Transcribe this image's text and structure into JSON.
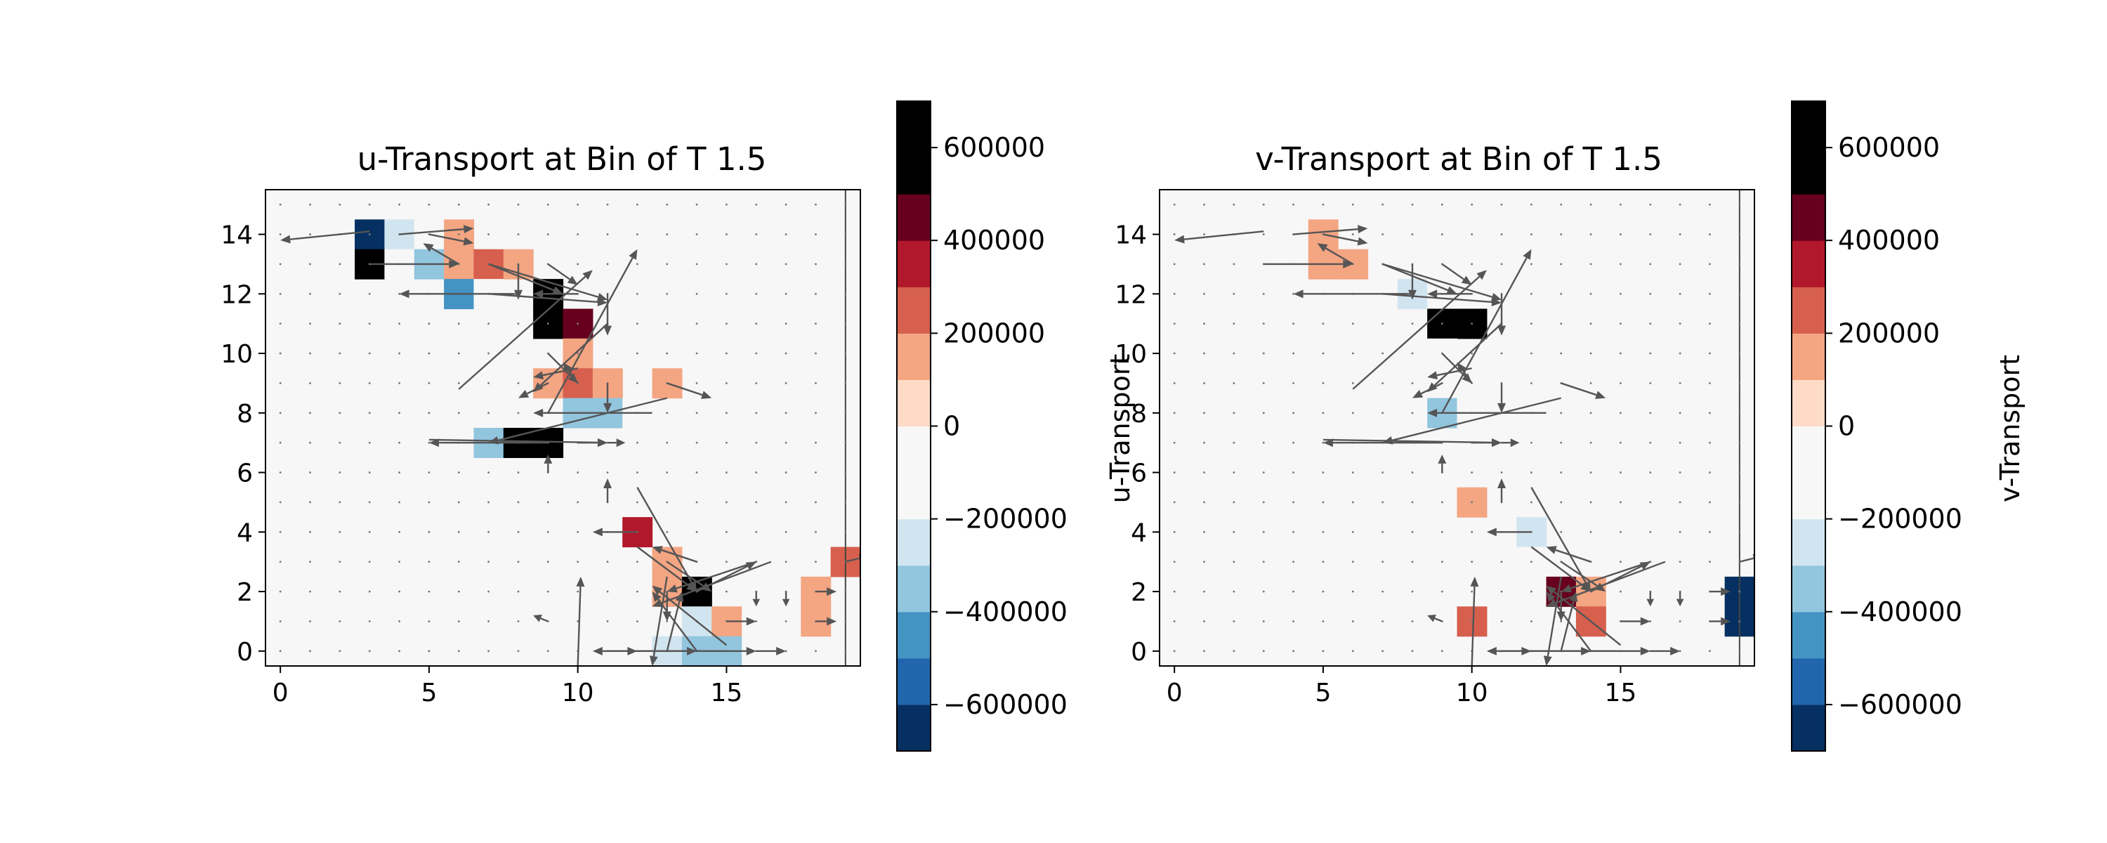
{
  "chart_data": [
    {
      "type": "heatmap",
      "title": "u-Transport at Bin of T 1.5",
      "xlabel": "",
      "ylabel": "",
      "xlim": [
        -0.5,
        19.5
      ],
      "ylim": [
        -0.5,
        15.5
      ],
      "x_ticks": [
        "0",
        "5",
        "10",
        "15"
      ],
      "y_ticks": [
        "0",
        "2",
        "4",
        "6",
        "8",
        "10",
        "12",
        "14"
      ],
      "grid": false,
      "cells": [
        {
          "x": 3,
          "y": 14,
          "value": -650000
        },
        {
          "x": 4,
          "y": 14,
          "value": -250000
        },
        {
          "x": 5,
          "y": 14,
          "value": -100000
        },
        {
          "x": 6,
          "y": 14,
          "value": 100000
        },
        {
          "x": 3,
          "y": 13,
          "value": 650000
        },
        {
          "x": 4,
          "y": 13,
          "value": -150000
        },
        {
          "x": 5,
          "y": 13,
          "value": -350000
        },
        {
          "x": 6,
          "y": 13,
          "value": 150000
        },
        {
          "x": 7,
          "y": 13,
          "value": 250000
        },
        {
          "x": 8,
          "y": 13,
          "value": 100000
        },
        {
          "x": 6,
          "y": 12,
          "value": -450000
        },
        {
          "x": 7,
          "y": 12,
          "value": -150000
        },
        {
          "x": 9,
          "y": 12,
          "value": 650000
        },
        {
          "x": 9,
          "y": 11,
          "value": 650000
        },
        {
          "x": 10,
          "y": 11,
          "value": 450000
        },
        {
          "x": 10,
          "y": 10,
          "value": 100000
        },
        {
          "x": 8,
          "y": 9,
          "value": -150000
        },
        {
          "x": 9,
          "y": 9,
          "value": 100000
        },
        {
          "x": 10,
          "y": 9,
          "value": 250000
        },
        {
          "x": 11,
          "y": 9,
          "value": 100000
        },
        {
          "x": 13,
          "y": 9,
          "value": 150000
        },
        {
          "x": 10,
          "y": 8,
          "value": -350000
        },
        {
          "x": 11,
          "y": 8,
          "value": -350000
        },
        {
          "x": 12,
          "y": 8,
          "value": -100000
        },
        {
          "x": 6,
          "y": 7,
          "value": -100000
        },
        {
          "x": 7,
          "y": 7,
          "value": -350000
        },
        {
          "x": 8,
          "y": 7,
          "value": 650000
        },
        {
          "x": 9,
          "y": 7,
          "value": 550000
        },
        {
          "x": 11,
          "y": 4,
          "value": -100000
        },
        {
          "x": 12,
          "y": 4,
          "value": 350000
        },
        {
          "x": 13,
          "y": 3,
          "value": 150000
        },
        {
          "x": 19,
          "y": 3,
          "value": 250000
        },
        {
          "x": 13,
          "y": 2,
          "value": 150000
        },
        {
          "x": 14,
          "y": 2,
          "value": 550000
        },
        {
          "x": 18,
          "y": 2,
          "value": 150000
        },
        {
          "x": 9,
          "y": 1,
          "value": -150000
        },
        {
          "x": 14,
          "y": 1,
          "value": -250000
        },
        {
          "x": 15,
          "y": 1,
          "value": 150000
        },
        {
          "x": 18,
          "y": 1,
          "value": 150000
        },
        {
          "x": 11,
          "y": 0,
          "value": -100000
        },
        {
          "x": 12,
          "y": 0,
          "value": -100000
        },
        {
          "x": 13,
          "y": 0,
          "value": -250000
        },
        {
          "x": 14,
          "y": 0,
          "value": -350000
        },
        {
          "x": 15,
          "y": 0,
          "value": -350000
        }
      ],
      "arrows": [
        {
          "x": 3,
          "y": 14.1,
          "u": -3.0,
          "v": -0.3
        },
        {
          "x": 3,
          "y": 13,
          "u": 3.0,
          "v": 0
        },
        {
          "x": 4,
          "y": 14,
          "u": 2.5,
          "v": 0.2
        },
        {
          "x": 5,
          "y": 14,
          "u": 1.5,
          "v": -0.3
        },
        {
          "x": 6,
          "y": 13,
          "u": -1.2,
          "v": 0.7
        },
        {
          "x": 7,
          "y": 13,
          "u": 2.5,
          "v": -1.0
        },
        {
          "x": 8,
          "y": 12,
          "u": -4.0,
          "v": 0
        },
        {
          "x": 7,
          "y": 13,
          "u": 4.0,
          "v": -1.2
        },
        {
          "x": 8,
          "y": 13,
          "u": 0,
          "v": -1.2
        },
        {
          "x": 7,
          "y": 12,
          "u": 4.0,
          "v": -0.3
        },
        {
          "x": 9,
          "y": 13,
          "u": 1.0,
          "v": -0.7
        },
        {
          "x": 10,
          "y": 12,
          "u": -1.5,
          "v": 0
        },
        {
          "x": 11,
          "y": 12,
          "u": 0,
          "v": -1.4
        },
        {
          "x": 9,
          "y": 8,
          "u": 3.0,
          "v": 5.5
        },
        {
          "x": 6,
          "y": 8.8,
          "u": 4.5,
          "v": 4.0
        },
        {
          "x": 11,
          "y": 11,
          "u": -2.5,
          "v": -2.3
        },
        {
          "x": 9,
          "y": 10,
          "u": 1.0,
          "v": -1.0
        },
        {
          "x": 9,
          "y": 9,
          "u": -1.0,
          "v": -0.5
        },
        {
          "x": 10,
          "y": 9,
          "u": -0.5,
          "v": 0.7
        },
        {
          "x": 11,
          "y": 9,
          "u": 0,
          "v": -1.0
        },
        {
          "x": 13,
          "y": 9,
          "u": 1.5,
          "v": -0.5
        },
        {
          "x": 10,
          "y": 9.5,
          "u": -1.5,
          "v": -0.3
        },
        {
          "x": 12.5,
          "y": 8,
          "u": -4.0,
          "v": 0
        },
        {
          "x": 13,
          "y": 8.5,
          "u": -6.0,
          "v": -1.5
        },
        {
          "x": 9,
          "y": 7,
          "u": -4.0,
          "v": 0
        },
        {
          "x": 5,
          "y": 7.1,
          "u": 6.0,
          "v": -0.1
        },
        {
          "x": 10,
          "y": 7,
          "u": 1.0,
          "v": 0
        },
        {
          "x": 11,
          "y": 7,
          "u": 0.6,
          "v": 0
        },
        {
          "x": 9,
          "y": 6,
          "u": 0,
          "v": 0.6
        },
        {
          "x": 11,
          "y": 5,
          "u": 0,
          "v": 0.8
        },
        {
          "x": 12,
          "y": 5.5,
          "u": 2.0,
          "v": -3.5
        },
        {
          "x": 12,
          "y": 4,
          "u": -1.5,
          "v": 0
        },
        {
          "x": 13,
          "y": 3,
          "u": 1.5,
          "v": -1.0
        },
        {
          "x": 14,
          "y": 3,
          "u": -1.5,
          "v": 0.5
        },
        {
          "x": 12,
          "y": 3.5,
          "u": 2.0,
          "v": -1.5
        },
        {
          "x": 13,
          "y": 2,
          "u": 0,
          "v": -1.0
        },
        {
          "x": 16,
          "y": 3,
          "u": -3.0,
          "v": -1.0
        },
        {
          "x": 16.5,
          "y": 3,
          "u": -4.0,
          "v": -1.5
        },
        {
          "x": 13,
          "y": 2.5,
          "u": -0.5,
          "v": -3.0
        },
        {
          "x": 14,
          "y": 2,
          "u": 2.0,
          "v": 1.0
        },
        {
          "x": 15,
          "y": 1,
          "u": 1.0,
          "v": 0
        },
        {
          "x": 16,
          "y": 2,
          "u": 0,
          "v": -0.5
        },
        {
          "x": 17,
          "y": 2,
          "u": 0,
          "v": -0.5
        },
        {
          "x": 18,
          "y": 2,
          "u": 0.7,
          "v": 0
        },
        {
          "x": 18,
          "y": 1,
          "u": 0.7,
          "v": 0
        },
        {
          "x": 19,
          "y": 3,
          "u": 0.8,
          "v": 0.2
        },
        {
          "x": 9,
          "y": 1,
          "u": -0.5,
          "v": 0.2
        },
        {
          "x": 10,
          "y": -0.5,
          "u": 0.1,
          "v": 3.0
        },
        {
          "x": 15,
          "y": 0,
          "u": -4.5,
          "v": 0
        },
        {
          "x": 15,
          "y": 0.2,
          "u": -2.5,
          "v": 2.0
        },
        {
          "x": 14,
          "y": 0,
          "u": -1.5,
          "v": 2.0
        },
        {
          "x": 13,
          "y": 0,
          "u": 3.0,
          "v": 0
        },
        {
          "x": 12,
          "y": 0,
          "u": 2.0,
          "v": 0
        },
        {
          "x": 11,
          "y": 0,
          "u": 1.0,
          "v": 0
        },
        {
          "x": 13,
          "y": 0,
          "u": 0.5,
          "v": 2.0
        },
        {
          "x": 16,
          "y": 0,
          "u": 1.0,
          "v": 0
        }
      ],
      "colorbar": {
        "boundaries": [
          -700000,
          -600000,
          -500000,
          -400000,
          -300000,
          -200000,
          -100000,
          0,
          100000,
          200000,
          300000,
          400000,
          500000,
          600000,
          700000
        ],
        "ticks": [
          -600000,
          -400000,
          -200000,
          0,
          200000,
          400000,
          600000
        ],
        "tick_labels": [
          "−600000",
          "−400000",
          "−200000",
          "0",
          "200000",
          "400000",
          "600000"
        ],
        "label": ""
      }
    },
    {
      "type": "heatmap",
      "title": "v-Transport at Bin of T 1.5",
      "xlabel": "",
      "ylabel": "u-Transport",
      "xlim": [
        -0.5,
        19.5
      ],
      "ylim": [
        -0.5,
        15.5
      ],
      "x_ticks": [
        "0",
        "5",
        "10",
        "15"
      ],
      "y_ticks": [
        "0",
        "2",
        "4",
        "6",
        "8",
        "10",
        "12",
        "14"
      ],
      "grid": false,
      "cells": [
        {
          "x": 3,
          "y": 14,
          "value": -100000
        },
        {
          "x": 5,
          "y": 14,
          "value": 150000
        },
        {
          "x": 5,
          "y": 13,
          "value": 100000
        },
        {
          "x": 6,
          "y": 13,
          "value": 100000
        },
        {
          "x": 8,
          "y": 13,
          "value": -100000
        },
        {
          "x": 9,
          "y": 13,
          "value": -100000
        },
        {
          "x": 8,
          "y": 12,
          "value": -300000
        },
        {
          "x": 9,
          "y": 12,
          "value": -100000
        },
        {
          "x": 9,
          "y": 11,
          "value": 550000
        },
        {
          "x": 10,
          "y": 11,
          "value": 650000
        },
        {
          "x": 9,
          "y": 10,
          "value": -100000
        },
        {
          "x": 8,
          "y": 9,
          "value": -100000
        },
        {
          "x": 10,
          "y": 9,
          "value": -100000
        },
        {
          "x": 9,
          "y": 8,
          "value": -400000
        },
        {
          "x": 10,
          "y": 8,
          "value": -100000
        },
        {
          "x": 10,
          "y": 5,
          "value": 150000
        },
        {
          "x": 12,
          "y": 4,
          "value": -250000
        },
        {
          "x": 12,
          "y": 3,
          "value": -100000
        },
        {
          "x": 13,
          "y": 2,
          "value": 450000
        },
        {
          "x": 14,
          "y": 2,
          "value": 150000
        },
        {
          "x": 10,
          "y": 1,
          "value": 250000
        },
        {
          "x": 14,
          "y": 1,
          "value": 250000
        },
        {
          "x": 19,
          "y": 2,
          "value": -650000
        },
        {
          "x": 19,
          "y": 1,
          "value": -650000
        }
      ],
      "arrows": [
        {
          "x": 3,
          "y": 14.1,
          "u": -3.0,
          "v": -0.3
        },
        {
          "x": 3,
          "y": 13,
          "u": 3.0,
          "v": 0
        },
        {
          "x": 4,
          "y": 14,
          "u": 2.5,
          "v": 0.2
        },
        {
          "x": 5,
          "y": 14,
          "u": 1.5,
          "v": -0.3
        },
        {
          "x": 6,
          "y": 13,
          "u": -1.2,
          "v": 0.7
        },
        {
          "x": 7,
          "y": 13,
          "u": 2.5,
          "v": -1.0
        },
        {
          "x": 8,
          "y": 12,
          "u": -4.0,
          "v": 0
        },
        {
          "x": 7,
          "y": 13,
          "u": 4.0,
          "v": -1.2
        },
        {
          "x": 8,
          "y": 13,
          "u": 0,
          "v": -1.2
        },
        {
          "x": 7,
          "y": 12,
          "u": 4.0,
          "v": -0.3
        },
        {
          "x": 9,
          "y": 13,
          "u": 1.0,
          "v": -0.7
        },
        {
          "x": 10,
          "y": 12,
          "u": -1.5,
          "v": 0
        },
        {
          "x": 11,
          "y": 12,
          "u": 0,
          "v": -1.4
        },
        {
          "x": 9,
          "y": 8,
          "u": 3.0,
          "v": 5.5
        },
        {
          "x": 6,
          "y": 8.8,
          "u": 4.5,
          "v": 4.0
        },
        {
          "x": 11,
          "y": 11,
          "u": -2.5,
          "v": -2.3
        },
        {
          "x": 9,
          "y": 10,
          "u": 1.0,
          "v": -1.0
        },
        {
          "x": 9,
          "y": 9,
          "u": -1.0,
          "v": -0.5
        },
        {
          "x": 10,
          "y": 9,
          "u": -0.5,
          "v": 0.7
        },
        {
          "x": 11,
          "y": 9,
          "u": 0,
          "v": -1.0
        },
        {
          "x": 13,
          "y": 9,
          "u": 1.5,
          "v": -0.5
        },
        {
          "x": 10,
          "y": 9.5,
          "u": -1.5,
          "v": -0.3
        },
        {
          "x": 12.5,
          "y": 8,
          "u": -4.0,
          "v": 0
        },
        {
          "x": 13,
          "y": 8.5,
          "u": -6.0,
          "v": -1.5
        },
        {
          "x": 9,
          "y": 7,
          "u": -4.0,
          "v": 0
        },
        {
          "x": 5,
          "y": 7.1,
          "u": 6.0,
          "v": -0.1
        },
        {
          "x": 10,
          "y": 7,
          "u": 1.0,
          "v": 0
        },
        {
          "x": 11,
          "y": 7,
          "u": 0.6,
          "v": 0
        },
        {
          "x": 9,
          "y": 6,
          "u": 0,
          "v": 0.6
        },
        {
          "x": 11,
          "y": 5,
          "u": 0,
          "v": 0.8
        },
        {
          "x": 12,
          "y": 5.5,
          "u": 2.0,
          "v": -3.5
        },
        {
          "x": 12,
          "y": 4,
          "u": -1.5,
          "v": 0
        },
        {
          "x": 13,
          "y": 3,
          "u": 1.5,
          "v": -1.0
        },
        {
          "x": 14,
          "y": 3,
          "u": -1.5,
          "v": 0.5
        },
        {
          "x": 12,
          "y": 3.5,
          "u": 2.0,
          "v": -1.5
        },
        {
          "x": 13,
          "y": 2,
          "u": 0,
          "v": -1.0
        },
        {
          "x": 16,
          "y": 3,
          "u": -3.0,
          "v": -1.0
        },
        {
          "x": 16.5,
          "y": 3,
          "u": -4.0,
          "v": -1.5
        },
        {
          "x": 13,
          "y": 2.5,
          "u": -0.5,
          "v": -3.0
        },
        {
          "x": 14,
          "y": 2,
          "u": 2.0,
          "v": 1.0
        },
        {
          "x": 15,
          "y": 1,
          "u": 1.0,
          "v": 0
        },
        {
          "x": 16,
          "y": 2,
          "u": 0,
          "v": -0.5
        },
        {
          "x": 17,
          "y": 2,
          "u": 0,
          "v": -0.5
        },
        {
          "x": 18,
          "y": 2,
          "u": 0.7,
          "v": 0
        },
        {
          "x": 18,
          "y": 1,
          "u": 0.7,
          "v": 0
        },
        {
          "x": 19,
          "y": 3,
          "u": 0.8,
          "v": 0.2
        },
        {
          "x": 9,
          "y": 1,
          "u": -0.5,
          "v": 0.2
        },
        {
          "x": 10,
          "y": -0.5,
          "u": 0.1,
          "v": 3.0
        },
        {
          "x": 15,
          "y": 0,
          "u": -4.5,
          "v": 0
        },
        {
          "x": 15,
          "y": 0.2,
          "u": -2.5,
          "v": 2.0
        },
        {
          "x": 14,
          "y": 0,
          "u": -1.5,
          "v": 2.0
        },
        {
          "x": 13,
          "y": 0,
          "u": 3.0,
          "v": 0
        },
        {
          "x": 12,
          "y": 0,
          "u": 2.0,
          "v": 0
        },
        {
          "x": 11,
          "y": 0,
          "u": 1.0,
          "v": 0
        },
        {
          "x": 13,
          "y": 0,
          "u": 0.5,
          "v": 2.0
        },
        {
          "x": 16,
          "y": 0,
          "u": 1.0,
          "v": 0
        }
      ],
      "colorbar": {
        "boundaries": [
          -700000,
          -600000,
          -500000,
          -400000,
          -300000,
          -200000,
          -100000,
          0,
          100000,
          200000,
          300000,
          400000,
          500000,
          600000,
          700000
        ],
        "ticks": [
          -600000,
          -400000,
          -200000,
          0,
          200000,
          400000,
          600000
        ],
        "tick_labels": [
          "−600000",
          "−400000",
          "−200000",
          "0",
          "200000",
          "400000",
          "600000"
        ],
        "label": "v-Transport"
      }
    }
  ],
  "colors": {
    "colormap": [
      "#053061",
      "#2166ac",
      "#4393c3",
      "#92c5de",
      "#d1e5f0",
      "#f7f7f7",
      "#f7f7f7",
      "#fddbc7",
      "#f4a582",
      "#d6604d",
      "#b2182b",
      "#67001f"
    ],
    "background": "#f7f7f7",
    "arrow": "#555555"
  }
}
